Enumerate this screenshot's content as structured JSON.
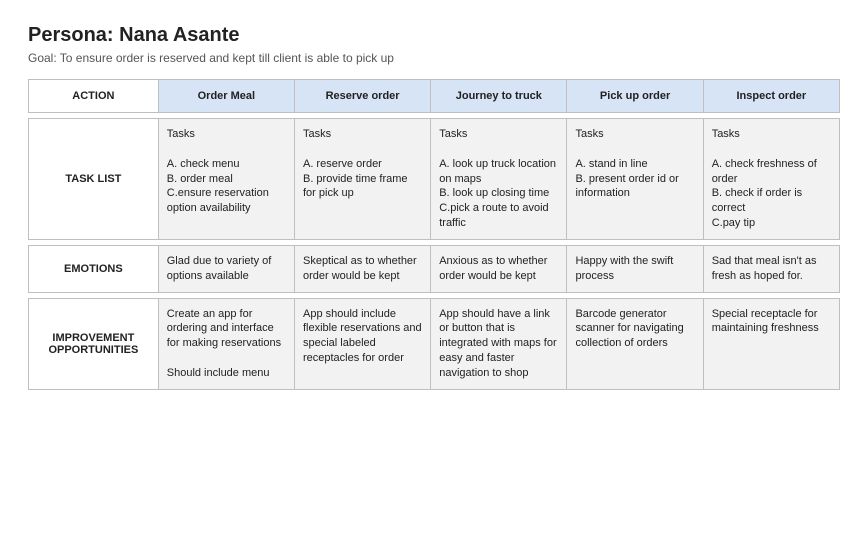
{
  "title": "Persona: Nana Asante",
  "goal": "Goal: To ensure order is reserved and kept till client is able to pick up",
  "colors": {
    "header_bg": "#d6e4f5",
    "cell_bg": "#f2f2f2",
    "border": "#bfbfbf",
    "text": "#222222",
    "goal_text": "#555555",
    "page_bg": "#ffffff"
  },
  "typography": {
    "title_fontsize_pt": 15,
    "body_fontsize_pt": 8,
    "font_family": "Arial"
  },
  "table": {
    "type": "table",
    "row_header_col_width_pct": 16,
    "stage_col_width_pct": 16.8,
    "action_label": "ACTION",
    "stages": [
      "Order Meal",
      "Reserve order",
      "Journey to truck",
      "Pick up order",
      "Inspect order"
    ],
    "rows": [
      {
        "label": "TASK LIST",
        "cells": [
          "Tasks\n\nA. check menu\nB. order meal\nC.ensure reservation option availability",
          "Tasks\n\nA. reserve order\nB. provide time frame for pick up",
          "Tasks\n\nA. look up truck location on maps\nB. look up closing time\nC.pick a  route to avoid traffic",
          "Tasks\n\nA. stand in line\nB. present order id or information",
          "Tasks\n\nA. check freshness of order\nB. check if order is correct\nC.pay tip"
        ]
      },
      {
        "label": "EMOTIONS",
        "cells": [
          "Glad due to variety of options available",
          "Skeptical as to whether order would be kept",
          "Anxious as to whether order would be kept",
          "Happy with the swift process",
          "Sad that meal isn't as fresh as hoped for."
        ]
      },
      {
        "label": "IMPROVEMENT OPPORTUNITIES",
        "cells": [
          "Create an app for ordering and interface for making reservations\n\nShould include menu",
          "App should include flexible reservations and special labeled receptacles for order",
          "App should have a link or button that  is integrated with maps for easy and faster navigation to shop",
          "Barcode generator scanner for navigating collection of orders",
          "Special receptacle for maintaining freshness"
        ]
      }
    ]
  }
}
